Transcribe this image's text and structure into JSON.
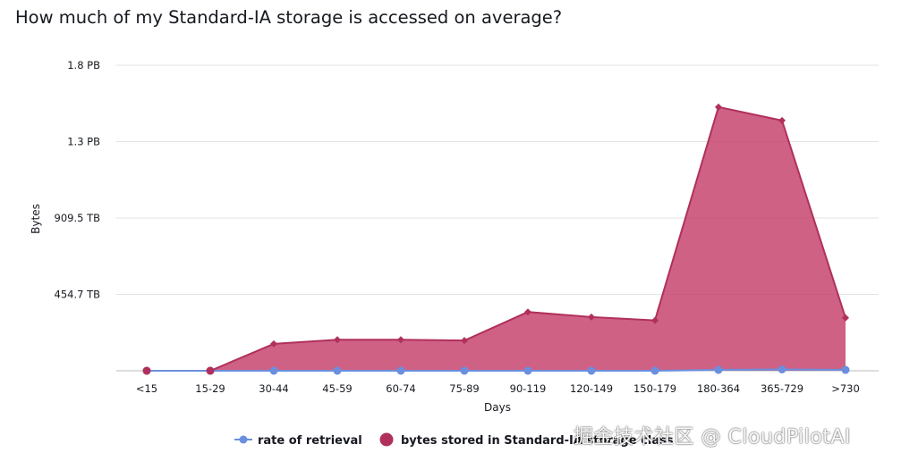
{
  "title": "How much of my Standard-IA storage is accessed on average?",
  "watermark": "掘金技术社区 @ CloudPilotAI",
  "colors": {
    "area_fill": "#c7456f",
    "area_line": "#b0305c",
    "retrieval": "#6b8fde",
    "grid": "#e3e3e3",
    "baseline": "#bdbdbd",
    "text": "#16191f"
  },
  "chart_data": {
    "type": "area",
    "title": "How much of my Standard-IA storage is accessed on average?",
    "xlabel": "Days",
    "ylabel": "Bytes",
    "categories": [
      "<15",
      "15-29",
      "30-44",
      "45-59",
      "60-74",
      "75-89",
      "90-119",
      "120-149",
      "150-179",
      "180-364",
      "365-729",
      ">730"
    ],
    "y_ticks": [
      {
        "value": 454.7,
        "label": "454.7 TB"
      },
      {
        "value": 909.5,
        "label": "909.5 TB"
      },
      {
        "value": 1364,
        "label": "1.3 PB"
      },
      {
        "value": 1819,
        "label": "1.8 PB"
      }
    ],
    "ylim": [
      0,
      1819
    ],
    "y_unit": "TB",
    "series": [
      {
        "name": "rate of retrieval",
        "type": "line",
        "marker": "circle",
        "color": "#6b8fde",
        "values": [
          0,
          0,
          0,
          0,
          0,
          0,
          0,
          0,
          0,
          5,
          8,
          5
        ]
      },
      {
        "name": "bytes stored in Standard-IA storage class",
        "type": "area",
        "marker": "diamond",
        "color": "#c7456f",
        "values": [
          0,
          0,
          160,
          185,
          185,
          180,
          350,
          320,
          300,
          1570,
          1490,
          315
        ]
      }
    ],
    "grid": true,
    "legend": {
      "position": "bottom",
      "items": [
        {
          "label": "rate of retrieval"
        },
        {
          "label": "bytes stored in Standard-IA storage class"
        }
      ]
    }
  }
}
